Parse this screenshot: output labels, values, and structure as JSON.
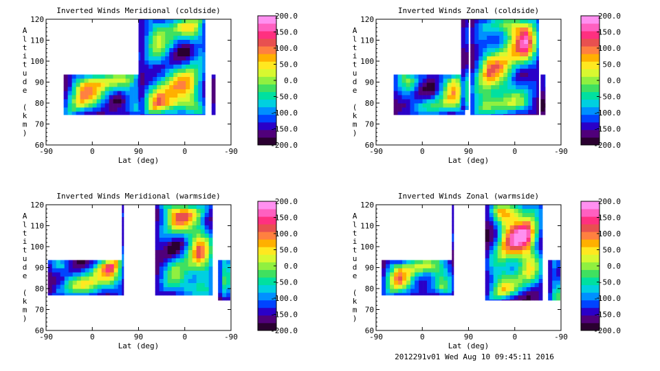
{
  "footer": "2012291v01 Wed Aug 10 09:45:11 2016",
  "colorbar": {
    "ticks": [
      "200.0",
      "150.0",
      "100.0",
      "50.0",
      "0.0",
      "-50.0",
      "-100.0",
      "-150.0",
      "-200.0"
    ],
    "range": [
      -200,
      200
    ],
    "colors": [
      "#2a0030",
      "#50007a",
      "#2a00c8",
      "#0044ff",
      "#0090ff",
      "#00d0e0",
      "#00e0a0",
      "#40e060",
      "#90f040",
      "#d8f830",
      "#ffe820",
      "#ffb000",
      "#ff8040",
      "#e85050",
      "#ff3080",
      "#ff60c0",
      "#ff90f0"
    ]
  },
  "chart_data": [
    {
      "type": "heatmap",
      "title": "Inverted Winds Meridional (coldside)",
      "xlabel": "Lat (deg)",
      "ylabel": "Altitude (km)",
      "xticks": [
        "-90",
        "0",
        "90",
        "0",
        "-90"
      ],
      "yticks": [
        "60",
        "70",
        "80",
        "90",
        "100",
        "110",
        "120"
      ],
      "ylim": [
        60,
        120
      ],
      "colorbar_range": [
        -200,
        200
      ]
    },
    {
      "type": "heatmap",
      "title": "Inverted Winds Zonal (coldside)",
      "xlabel": "Lat (deg)",
      "ylabel": "Altitude (km)",
      "xticks": [
        "-90",
        "0",
        "90",
        "0",
        "-90"
      ],
      "yticks": [
        "60",
        "70",
        "80",
        "90",
        "100",
        "110",
        "120"
      ],
      "ylim": [
        60,
        120
      ],
      "colorbar_range": [
        -200,
        200
      ]
    },
    {
      "type": "heatmap",
      "title": "Inverted Winds Meridional (warmside)",
      "xlabel": "Lat (deg)",
      "ylabel": "Altitude (km)",
      "xticks": [
        "-90",
        "0",
        "90",
        "0",
        "-90"
      ],
      "yticks": [
        "60",
        "70",
        "80",
        "90",
        "100",
        "110",
        "120"
      ],
      "ylim": [
        60,
        120
      ],
      "colorbar_range": [
        -200,
        200
      ]
    },
    {
      "type": "heatmap",
      "title": "Inverted Winds Zonal (warmside)",
      "xlabel": "Lat (deg)",
      "ylabel": "Altitude (km)",
      "xticks": [
        "-90",
        "0",
        "90",
        "0",
        "-90"
      ],
      "yticks": [
        "60",
        "70",
        "80",
        "90",
        "100",
        "110",
        "120"
      ],
      "ylim": [
        60,
        120
      ],
      "colorbar_range": [
        -200,
        200
      ]
    }
  ]
}
